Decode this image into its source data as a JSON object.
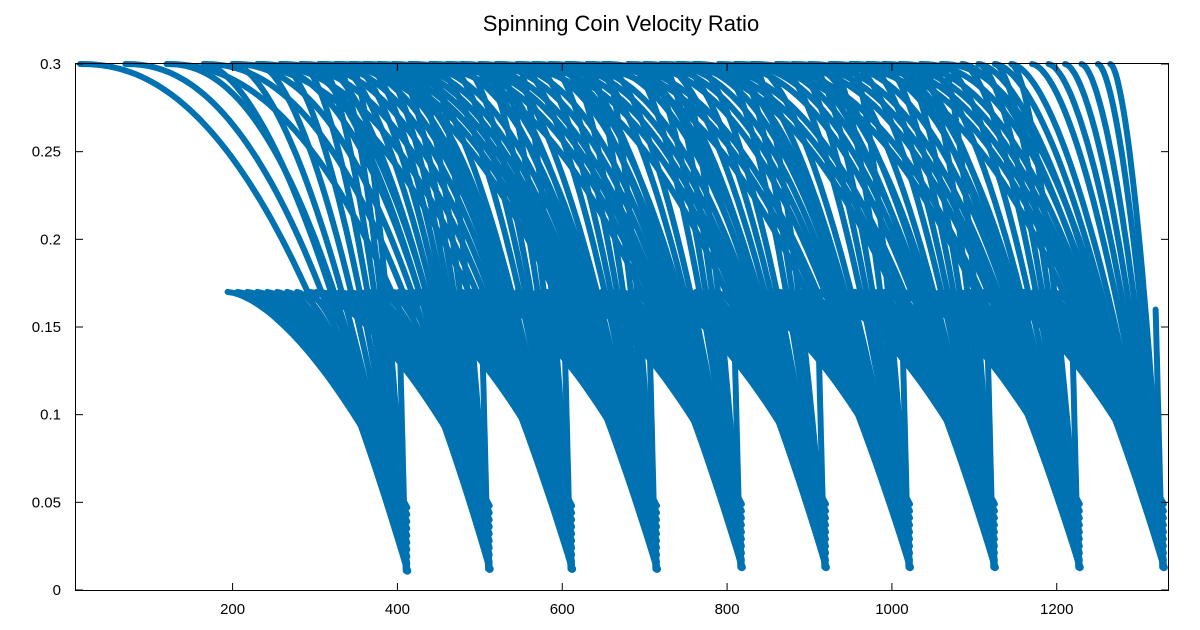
{
  "chart_data": {
    "type": "scatter",
    "title": "Spinning Coin Velocity Ratio",
    "xlabel": "",
    "ylabel": "",
    "xlim": [
      10,
      1335
    ],
    "ylim": [
      0,
      0.3
    ],
    "x_ticks": [
      200,
      400,
      600,
      800,
      1000,
      1200
    ],
    "x_tick_labels": [
      "200",
      "400",
      "600",
      "800",
      "1000",
      "1200"
    ],
    "y_ticks": [
      0,
      0.05,
      0.1,
      0.15,
      0.2,
      0.25,
      0.3
    ],
    "y_tick_labels": [
      "0",
      "0.05",
      "0.1",
      "0.15",
      "0.2",
      "0.25",
      "0.3"
    ],
    "grid": false,
    "legend": "none",
    "color": "#0072b2",
    "pattern": {
      "description_free": true,
      "curve_start_x": [
        15,
        70,
        120,
        165,
        200,
        230,
        258,
        283,
        305,
        325,
        343,
        360,
        377,
        395,
        415,
        440,
        460,
        478,
        500,
        520,
        545,
        565,
        585,
        605,
        630,
        650,
        680,
        700,
        720,
        740,
        760,
        790,
        810,
        830,
        860,
        880,
        900,
        925,
        950,
        970,
        990,
        1010,
        1035,
        1060,
        1085,
        1105,
        1125,
        1145,
        1170,
        1190,
        1210,
        1230,
        1250,
        1265,
        1280,
        1300
      ],
      "curve_start_y": 0.3,
      "cluster_bottom_x": [
        412,
        512,
        612,
        715,
        818,
        920,
        1022,
        1125,
        1228,
        1330
      ],
      "cluster_bottom_y": [
        0.011,
        0.012,
        0.012,
        0.012,
        0.013,
        0.013,
        0.013,
        0.013,
        0.013,
        0.013
      ]
    }
  }
}
